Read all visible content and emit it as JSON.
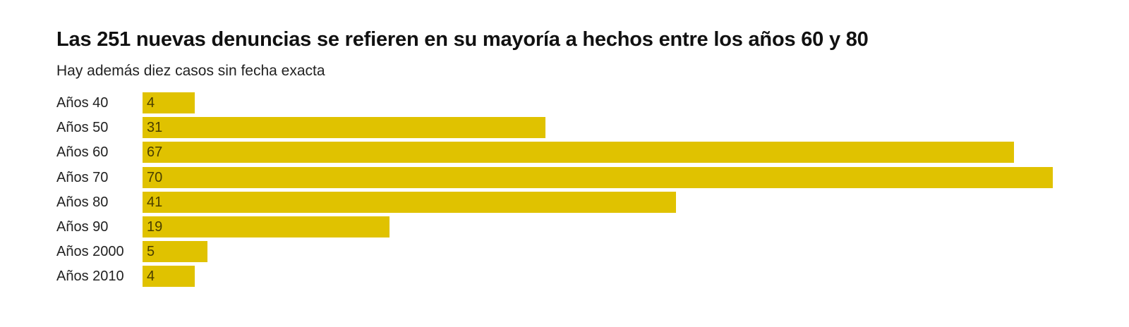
{
  "chart_data": {
    "type": "bar",
    "orientation": "horizontal",
    "title": "Las 251 nuevas denuncias se refieren en su mayoría a hechos entre los años 60 y 80",
    "subtitle": "Hay además diez casos sin fecha exacta",
    "categories": [
      "Años 40",
      "Años 50",
      "Años 60",
      "Años 70",
      "Años 80",
      "Años 90",
      "Años 2000",
      "Años 2010"
    ],
    "values": [
      4,
      31,
      67,
      70,
      41,
      19,
      5,
      4
    ],
    "xlim": [
      0,
      70
    ],
    "grid": false,
    "legend": "none",
    "bar_color": "#e0c200"
  }
}
